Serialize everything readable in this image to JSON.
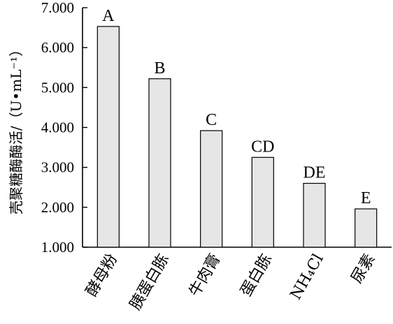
{
  "chart_data": {
    "type": "bar",
    "title": "",
    "xlabel": "",
    "ylabel": "壳聚糖酶酶活/（U•mL⁻¹）",
    "ylim": [
      1.0,
      7.0
    ],
    "yticks": [
      "1.000",
      "2.000",
      "3.000",
      "4.000",
      "5.000",
      "6.000",
      "7.000"
    ],
    "categories": [
      "酵母粉",
      "胰蛋白胨",
      "牛肉膏",
      "蛋白胨",
      "NH₄Cl",
      "尿素"
    ],
    "values": [
      6.53,
      5.22,
      3.92,
      3.25,
      2.6,
      1.96
    ],
    "significance_letters": [
      "A",
      "B",
      "C",
      "CD",
      "DE",
      "E"
    ],
    "grid": false,
    "legend": "none",
    "bar_color": "#e6e6e6"
  }
}
